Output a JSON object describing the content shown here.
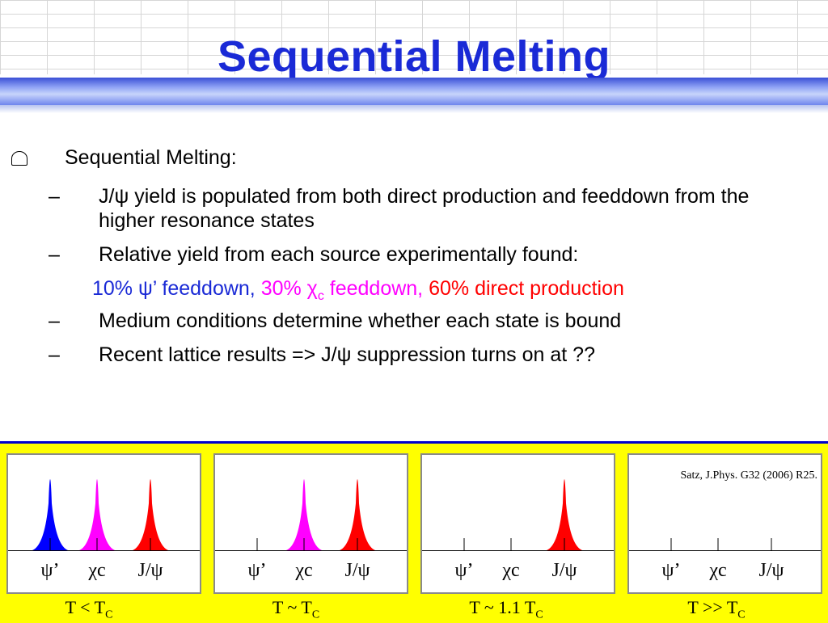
{
  "title": "Sequential Melting",
  "bullet": "Sequential Melting:",
  "items": [
    "J/ψ yield is populated from both direct production and feeddown from the higher resonance states",
    "Relative yield from each source experimentally found:",
    "Medium conditions determine whether each state is bound",
    "Recent lattice results => J/ψ suppression turns on at ??"
  ],
  "highlight": {
    "part1": "10% ψ’ feeddown,",
    "part2": "30% χ",
    "part2_sub": "c",
    "part2_rest": " feeddown,",
    "part3": "60% direct production"
  },
  "panels": {
    "labels": [
      "ψ’",
      "χc",
      "J/ψ"
    ],
    "captions": [
      "T < T",
      "T ~ T",
      "T ~ 1.1 T",
      "T >> T"
    ],
    "caption_sub": "C",
    "citation": "Satz, J.Phys. G32 (2006) R25."
  },
  "colors": {
    "psi_prime": "#0000ff",
    "chi_c": "#ff00ff",
    "jpsi": "#ff0000"
  }
}
